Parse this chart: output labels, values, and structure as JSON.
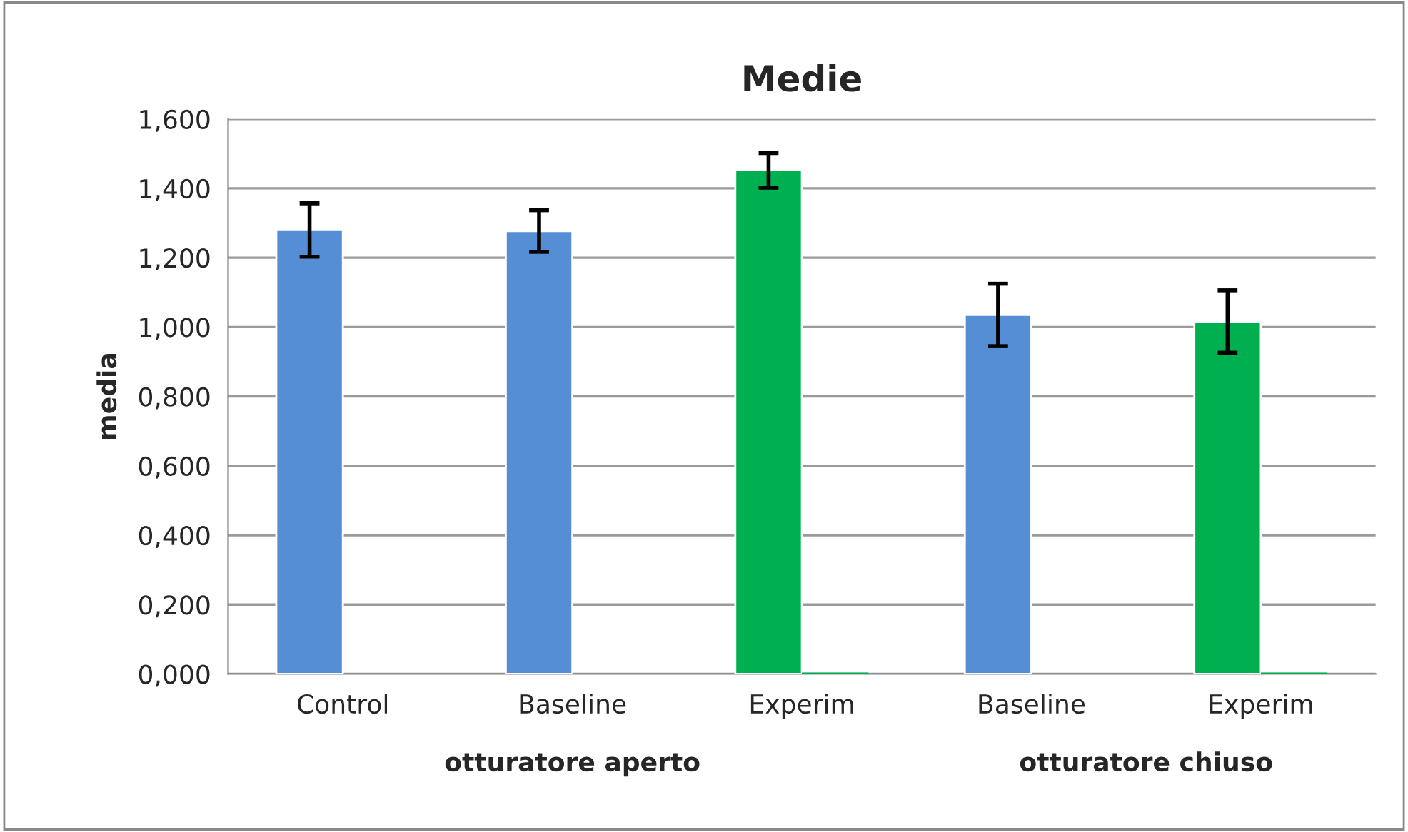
{
  "chart_data": {
    "type": "bar",
    "title": "Medie",
    "ylabel": "media",
    "categories": [
      "Control",
      "Baseline",
      "Experim",
      "Baseline",
      "Experim"
    ],
    "series": [
      {
        "colors": [
          "#558ed5",
          "#558ed5",
          "#00b050",
          "#558ed5",
          "#00b050"
        ],
        "values": [
          1.28,
          1.277,
          1.452,
          1.035,
          1.016
        ],
        "errors": [
          0.077,
          0.06,
          0.05,
          0.09,
          0.09
        ]
      },
      {
        "color": "#00b050",
        "values": [
          null,
          null,
          0,
          null,
          0
        ]
      }
    ],
    "ylim": [
      0,
      1.6
    ],
    "yticks": [
      {
        "value": 0,
        "label": "0,000"
      },
      {
        "value": 0.2,
        "label": "0,200"
      },
      {
        "value": 0.4,
        "label": "0,400"
      },
      {
        "value": 0.6,
        "label": "0,600"
      },
      {
        "value": 0.8,
        "label": "0,800"
      },
      {
        "value": 1.0,
        "label": "1,000"
      },
      {
        "value": 1.2,
        "label": "1,200"
      },
      {
        "value": 1.4,
        "label": "1,400"
      },
      {
        "value": 1.6,
        "label": "1,600"
      }
    ],
    "annotations": [
      "otturatore aperto",
      "otturatore chiuso"
    ],
    "grid": "y"
  }
}
